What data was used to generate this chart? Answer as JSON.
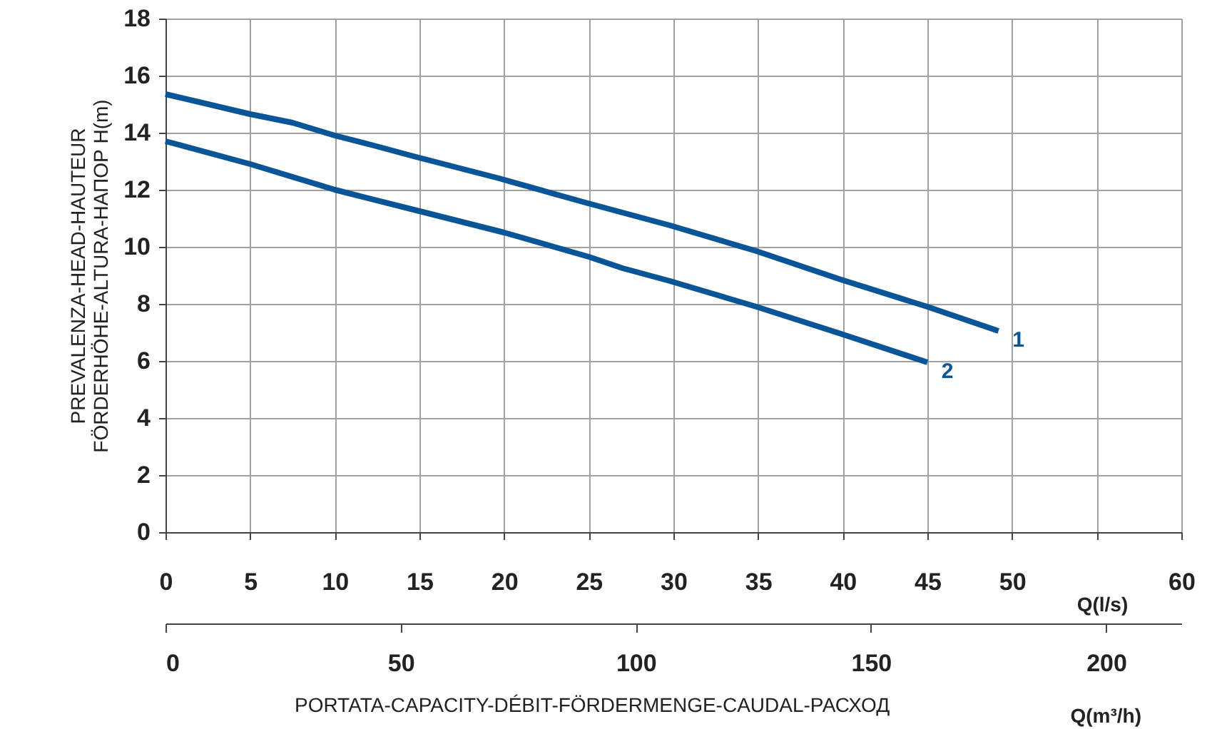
{
  "chart_data": {
    "type": "line",
    "xlabel": "Q(l/s)",
    "ylabel": "PREVALENZA-HEAD-HAUTEUR\nFÖRDERHÖHE-ALTURA-НАПОР  H(m)",
    "x2label": "Q(m³/h)",
    "annotations": [
      "PORTATA-CAPACITY-DÉBIT-FÖRDERMENGE-CAUDAL-РАСХОД"
    ],
    "xlim": [
      0,
      60
    ],
    "xticks": [
      0,
      5,
      10,
      15,
      20,
      25,
      30,
      35,
      40,
      45,
      50,
      {
        "value": 55,
        "label": null
      },
      60
    ],
    "ylim": [
      0,
      18
    ],
    "yticks": [
      0,
      2,
      4,
      6,
      8,
      10,
      12,
      14,
      16,
      18
    ],
    "x2lim": [
      0,
      216
    ],
    "x2ticks": [
      0,
      50,
      100,
      150,
      200
    ],
    "grid": true,
    "marker": "none",
    "line_style": "solid",
    "series": [
      {
        "name": "1",
        "color": "#0a5498",
        "x": [
          0,
          5,
          7.5,
          10,
          12.3,
          14.8,
          19.7,
          24.8,
          29.8,
          34.9,
          39.9,
          45,
          49.2
        ],
        "values": [
          15.35,
          14.65,
          14.35,
          13.9,
          13.55,
          13.15,
          12.4,
          11.55,
          10.75,
          9.85,
          8.85,
          7.9,
          7.05
        ]
      },
      {
        "name": "2",
        "color": "#0a5498",
        "x": [
          0,
          5,
          10,
          15,
          20,
          25,
          27,
          29.8,
          34.9,
          39.9,
          45
        ],
        "values": [
          13.7,
          12.9,
          12.0,
          11.25,
          10.5,
          9.65,
          9.25,
          8.8,
          7.9,
          6.95,
          5.95
        ]
      }
    ]
  }
}
